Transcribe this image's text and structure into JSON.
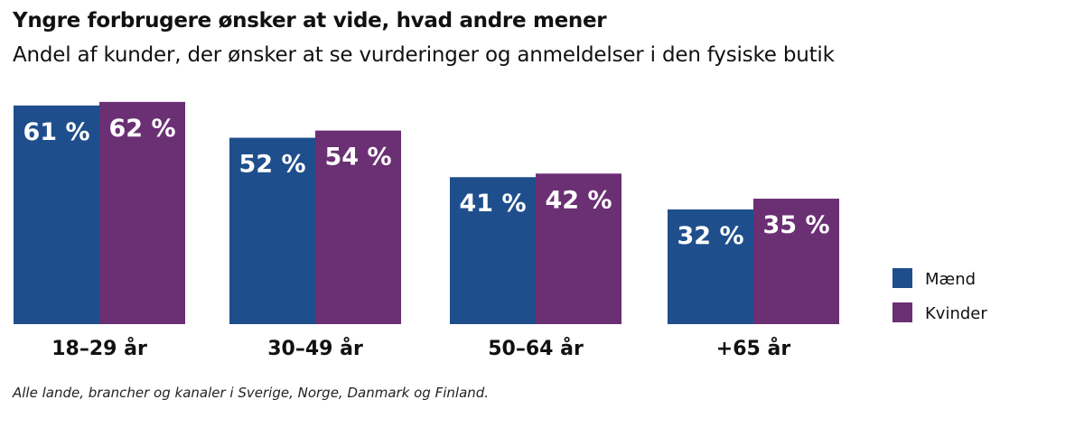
{
  "chart_data": {
    "type": "bar",
    "title": "Yngre forbrugere ønsker at vide, hvad andre mener",
    "subtitle": "Andel af kunder, der ønsker at se vurderinger og anmeldelser i den fysiske butik",
    "categories": [
      "18–29 år",
      "30–49 år",
      "50–64 år",
      "+65 år"
    ],
    "series": [
      {
        "name": "Mænd",
        "color": "#1f4e8c",
        "values": [
          61,
          52,
          41,
          32
        ],
        "labels": [
          "61 %",
          "52 %",
          "41 %",
          "32 %"
        ]
      },
      {
        "name": "Kvinder",
        "color": "#6b2f74",
        "values": [
          62,
          54,
          42,
          35
        ],
        "labels": [
          "62 %",
          "54 %",
          "42 %",
          "35 %"
        ]
      }
    ],
    "ylim": [
      0,
      100
    ],
    "grid": false,
    "legend": "right",
    "footnote": "Alle lande, brancher og kanaler i Sverige, Norge, Danmark og Finland."
  }
}
